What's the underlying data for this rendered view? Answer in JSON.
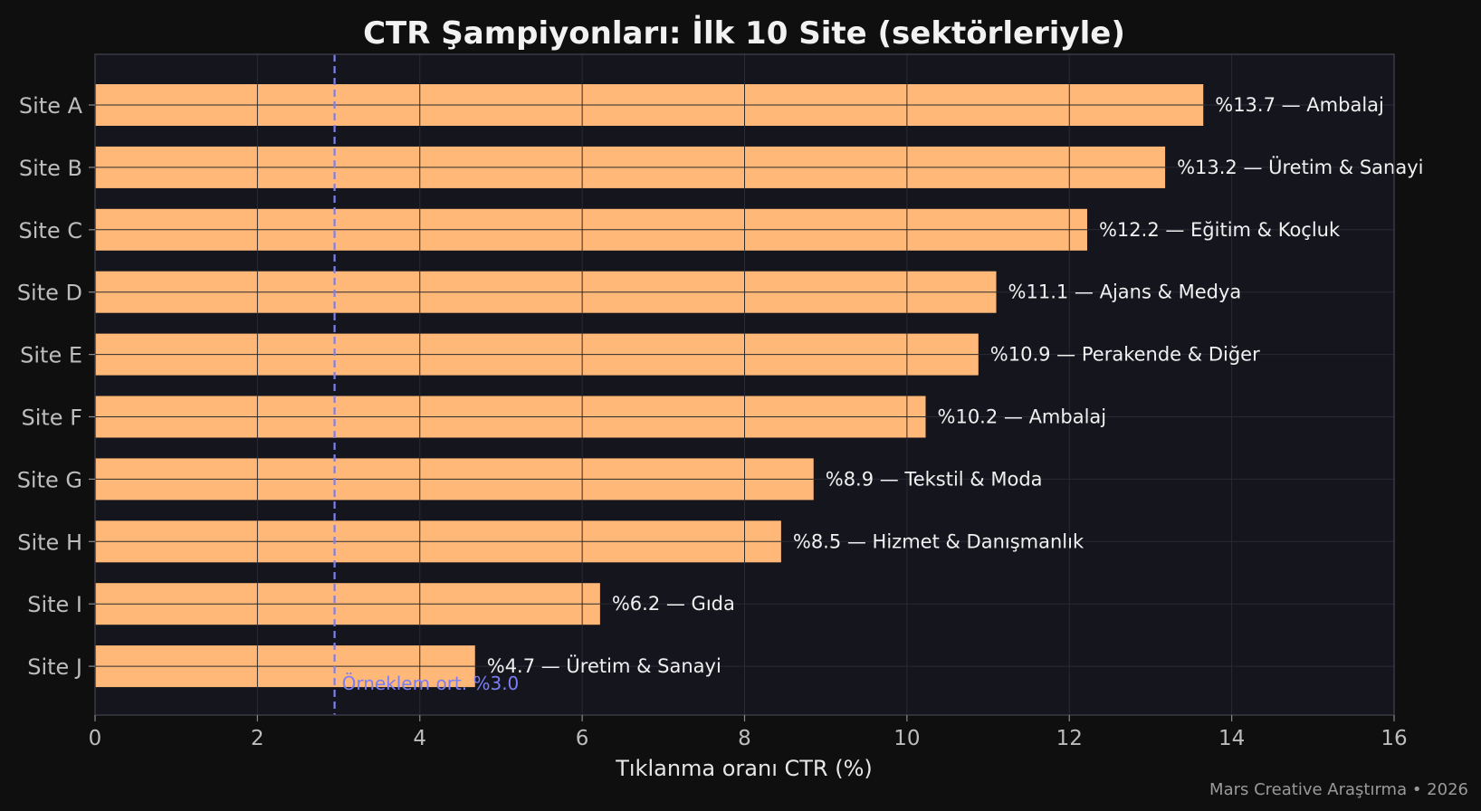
{
  "chart_data": {
    "type": "bar",
    "orientation": "horizontal",
    "title": "CTR Şampiyonları: İlk 10 Site (sektörleriyle)",
    "xlabel": "Tıklanma oranı CTR (%)",
    "ylabel": "",
    "xlim": [
      0,
      16
    ],
    "xticks": [
      "0",
      "2",
      "4",
      "6",
      "8",
      "10",
      "12",
      "14",
      "16"
    ],
    "grid": true,
    "categories": [
      "Site A",
      "Site B",
      "Site C",
      "Site D",
      "Site E",
      "Site F",
      "Site G",
      "Site H",
      "Site I",
      "Site J"
    ],
    "values": [
      13.65,
      13.18,
      12.22,
      11.1,
      10.88,
      10.23,
      8.85,
      8.45,
      6.22,
      4.68
    ],
    "bar_labels": [
      "%13.7 — Ambalaj",
      "%13.2 — Üretim & Sanayi",
      "%12.2 — Eğitim & Koçluk",
      "%11.1 — Ajans & Medya",
      "%10.9 — Perakende & Diğer",
      "%10.2 — Ambalaj",
      "%8.9 — Tekstil & Moda",
      "%8.5 — Hizmet & Danışmanlık",
      "%6.2 — Gıda",
      "%4.7 — Üretim & Sanayi"
    ],
    "reference_line": {
      "value": 2.95,
      "label": "Örneklem ort. %3.0",
      "color": "#7b7ff5"
    },
    "colors": {
      "bar": "#ffb877",
      "plot_background": "#15151d",
      "page_background": "#0f0f10"
    },
    "footer": "Mars Creative Araştırma • 2026"
  }
}
